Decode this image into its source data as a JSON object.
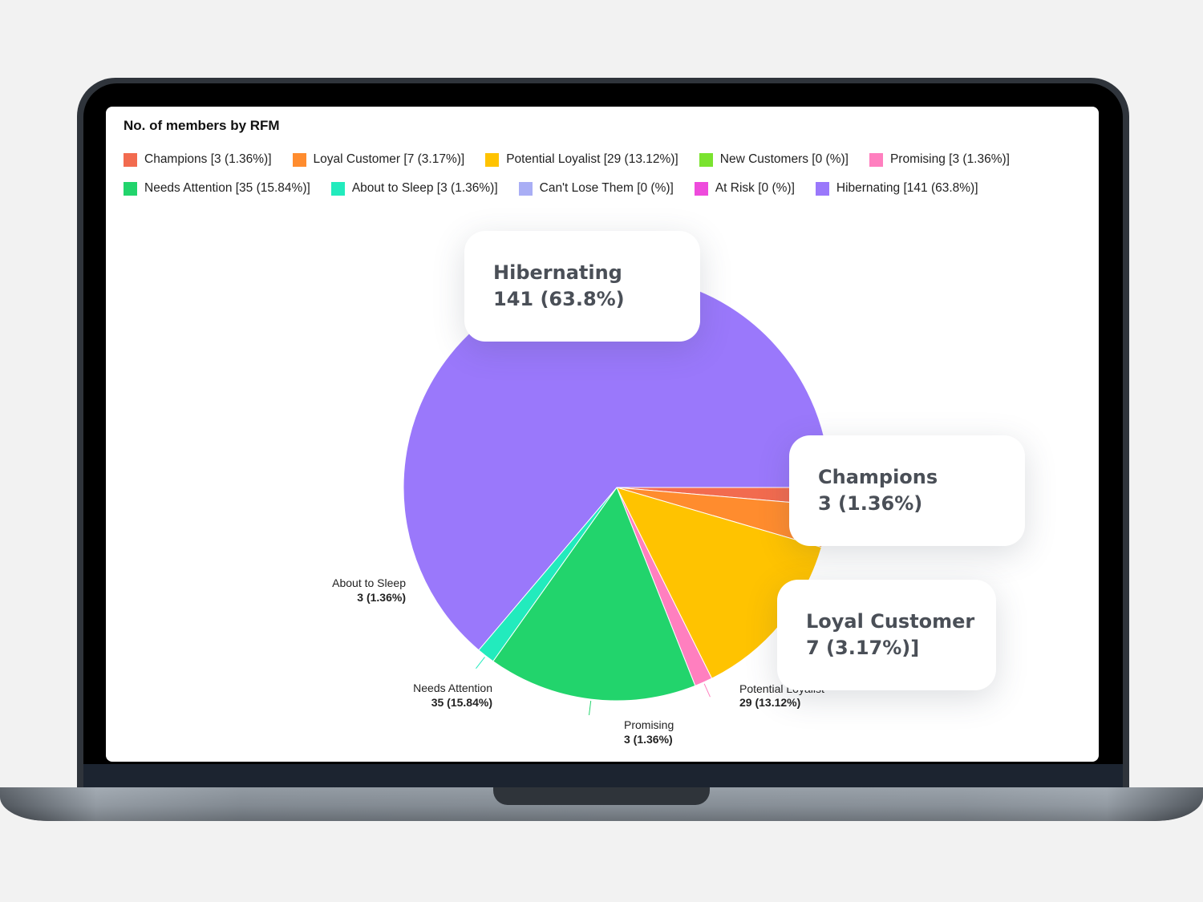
{
  "chart_data": {
    "type": "pie",
    "title": "No. of members by RFM",
    "slices": [
      {
        "name": "Champions",
        "value": 3,
        "percent": "1.36%",
        "legend": "Champions [3 (1.36%)]",
        "color": "#f26b4f"
      },
      {
        "name": "Loyal Customer",
        "value": 7,
        "percent": "3.17%",
        "legend": "Loyal Customer [7 (3.17%)]",
        "color": "#ff8c2e"
      },
      {
        "name": "Potential Loyalist",
        "value": 29,
        "percent": "13.12%",
        "legend": "Potential Loyalist [29 (13.12%)]",
        "color": "#ffc300",
        "label_value": "29 (13.12%)"
      },
      {
        "name": "New Customers",
        "value": 0,
        "percent": "%",
        "legend": "New Customers [0 (%)]",
        "color": "#7ae32f"
      },
      {
        "name": "Promising",
        "value": 3,
        "percent": "1.36%",
        "legend": "Promising [3 (1.36%)]",
        "color": "#ff7fbf",
        "label_value": "3 (1.36%)"
      },
      {
        "name": "Needs Attention",
        "value": 35,
        "percent": "15.84%",
        "legend": "Needs Attention [35 (15.84%)]",
        "color": "#22d46c",
        "label_value": "35 (15.84%)"
      },
      {
        "name": "About to Sleep",
        "value": 3,
        "percent": "1.36%",
        "legend": "About to Sleep [3 (1.36%)]",
        "color": "#22ebbd",
        "label_value": "3 (1.36%)"
      },
      {
        "name": "Can't Lose Them",
        "value": 0,
        "percent": "%",
        "legend": "Can't Lose Them [0 (%)]",
        "color": "#a9aef5"
      },
      {
        "name": "At Risk",
        "value": 0,
        "percent": "%",
        "legend": "At Risk [0 (%)]",
        "color": "#ee4bdc"
      },
      {
        "name": "Hibernating",
        "value": 141,
        "percent": "63.8%",
        "legend": "Hibernating [141 (63.8%)]",
        "color": "#9a78fb"
      }
    ],
    "legend_position": "top"
  },
  "callouts": {
    "hibernating": {
      "name": "Hibernating",
      "value": "141 (63.8%)"
    },
    "champions": {
      "name": "Champions",
      "value": "3 (1.36%)"
    },
    "loyal": {
      "name": "Loyal Customer",
      "value": "7 (3.17%)]"
    }
  }
}
